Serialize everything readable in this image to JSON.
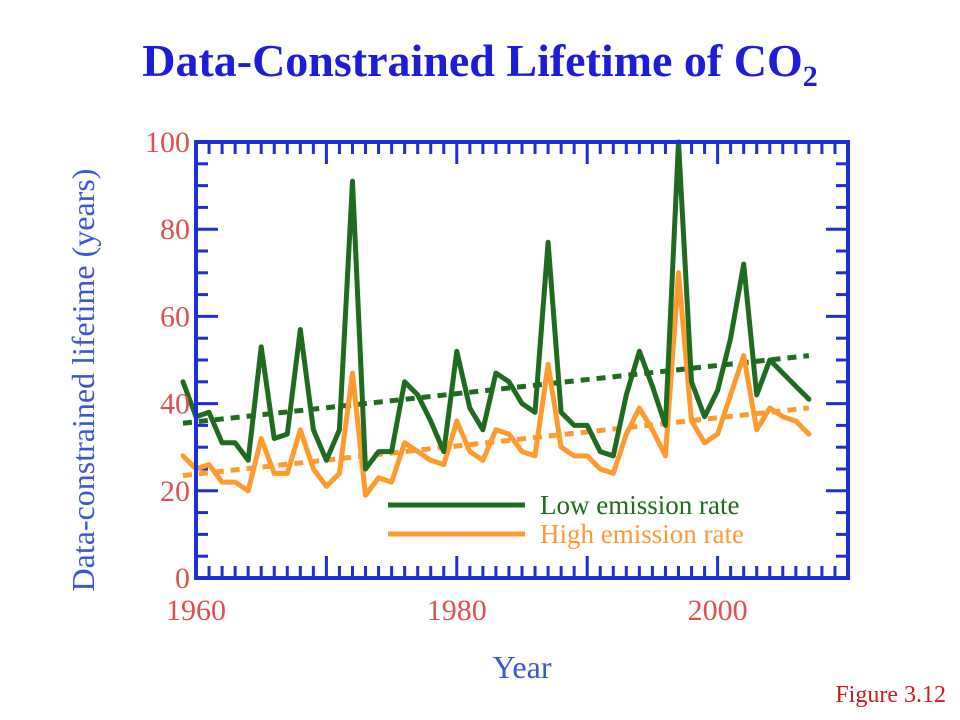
{
  "title": {
    "main": "Data-Constrained Lifetime of CO",
    "subscript": "2"
  },
  "figure_label": "Figure 3.12",
  "chart_data": {
    "type": "line",
    "xlabel": "Year",
    "ylabel": "Data-constrained lifetime (years)",
    "xlim": [
      1960,
      2010
    ],
    "ylim": [
      0,
      100
    ],
    "x_ticks": [
      1960,
      1980,
      2000
    ],
    "y_ticks": [
      0,
      20,
      40,
      60,
      80,
      100
    ],
    "legend_position": "lower-right",
    "colors": {
      "axis": "#1f2fd6",
      "tick_label": "#e05050",
      "axis_title": "#3a56d8",
      "low": "#1f6b1f",
      "high": "#ff9a2e"
    },
    "series": [
      {
        "name": "Low emission rate",
        "color": "#1f6b1f",
        "x": [
          1959,
          1960,
          1961,
          1962,
          1963,
          1964,
          1965,
          1966,
          1967,
          1968,
          1969,
          1970,
          1971,
          1972,
          1973,
          1974,
          1975,
          1976,
          1977,
          1978,
          1979,
          1980,
          1981,
          1982,
          1983,
          1984,
          1985,
          1986,
          1987,
          1988,
          1989,
          1990,
          1991,
          1992,
          1993,
          1994,
          1995,
          1996,
          1997,
          1998,
          1999,
          2000,
          2001,
          2002,
          2003,
          2004,
          2005,
          2006,
          2007
        ],
        "y": [
          45,
          37,
          38,
          31,
          31,
          27,
          53,
          32,
          33,
          57,
          34,
          27,
          34,
          91,
          25,
          29,
          29,
          45,
          42,
          36,
          29,
          52,
          39,
          34,
          47,
          45,
          40,
          38,
          77,
          38,
          35,
          35,
          29,
          28,
          42,
          52,
          44,
          35,
          100,
          45,
          37,
          43,
          55,
          72,
          42,
          50,
          47,
          44,
          41
        ],
        "trend": {
          "x": [
            1959,
            2007
          ],
          "y": [
            35.5,
            51
          ]
        }
      },
      {
        "name": "High emission rate",
        "color": "#ff9a2e",
        "x": [
          1959,
          1960,
          1961,
          1962,
          1963,
          1964,
          1965,
          1966,
          1967,
          1968,
          1969,
          1970,
          1971,
          1972,
          1973,
          1974,
          1975,
          1976,
          1977,
          1978,
          1979,
          1980,
          1981,
          1982,
          1983,
          1984,
          1985,
          1986,
          1987,
          1988,
          1989,
          1990,
          1991,
          1992,
          1993,
          1994,
          1995,
          1996,
          1997,
          1998,
          1999,
          2000,
          2001,
          2002,
          2003,
          2004,
          2005,
          2006,
          2007
        ],
        "y": [
          28,
          25,
          26,
          22,
          22,
          20,
          32,
          24,
          24,
          34,
          25,
          21,
          24,
          47,
          19,
          23,
          22,
          31,
          29,
          27,
          26,
          36,
          29,
          27,
          34,
          33,
          29,
          28,
          49,
          30,
          28,
          28,
          25,
          24,
          33,
          39,
          34,
          28,
          70,
          36,
          31,
          33,
          42,
          51,
          34,
          39,
          37,
          36,
          33
        ],
        "trend": {
          "x": [
            1959,
            2007
          ],
          "y": [
            23.5,
            39
          ]
        }
      }
    ]
  }
}
